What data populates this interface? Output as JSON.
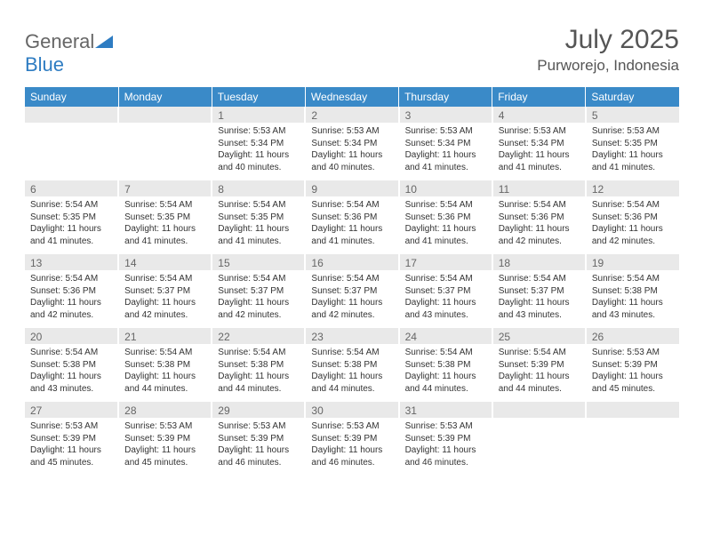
{
  "brand": {
    "part1": "General",
    "part2": "Blue"
  },
  "title": "July 2025",
  "location": "Purworejo, Indonesia",
  "colors": {
    "header_bg": "#3a8ac8",
    "header_text": "#ffffff",
    "daynum_bg": "#e9e9e9",
    "daynum_text": "#666666",
    "body_text": "#333333",
    "brand_gray": "#666666",
    "brand_blue": "#2e7cc2",
    "page_bg": "#ffffff"
  },
  "typography": {
    "title_fontsize": 30,
    "location_fontsize": 17,
    "weekday_fontsize": 12,
    "daynum_fontsize": 12,
    "cell_fontsize": 10
  },
  "weekdays": [
    "Sunday",
    "Monday",
    "Tuesday",
    "Wednesday",
    "Thursday",
    "Friday",
    "Saturday"
  ],
  "weeks": [
    [
      null,
      null,
      {
        "n": "1",
        "sr": "5:53 AM",
        "ss": "5:34 PM",
        "dl": "11 hours and 40 minutes."
      },
      {
        "n": "2",
        "sr": "5:53 AM",
        "ss": "5:34 PM",
        "dl": "11 hours and 40 minutes."
      },
      {
        "n": "3",
        "sr": "5:53 AM",
        "ss": "5:34 PM",
        "dl": "11 hours and 41 minutes."
      },
      {
        "n": "4",
        "sr": "5:53 AM",
        "ss": "5:34 PM",
        "dl": "11 hours and 41 minutes."
      },
      {
        "n": "5",
        "sr": "5:53 AM",
        "ss": "5:35 PM",
        "dl": "11 hours and 41 minutes."
      }
    ],
    [
      {
        "n": "6",
        "sr": "5:54 AM",
        "ss": "5:35 PM",
        "dl": "11 hours and 41 minutes."
      },
      {
        "n": "7",
        "sr": "5:54 AM",
        "ss": "5:35 PM",
        "dl": "11 hours and 41 minutes."
      },
      {
        "n": "8",
        "sr": "5:54 AM",
        "ss": "5:35 PM",
        "dl": "11 hours and 41 minutes."
      },
      {
        "n": "9",
        "sr": "5:54 AM",
        "ss": "5:36 PM",
        "dl": "11 hours and 41 minutes."
      },
      {
        "n": "10",
        "sr": "5:54 AM",
        "ss": "5:36 PM",
        "dl": "11 hours and 41 minutes."
      },
      {
        "n": "11",
        "sr": "5:54 AM",
        "ss": "5:36 PM",
        "dl": "11 hours and 42 minutes."
      },
      {
        "n": "12",
        "sr": "5:54 AM",
        "ss": "5:36 PM",
        "dl": "11 hours and 42 minutes."
      }
    ],
    [
      {
        "n": "13",
        "sr": "5:54 AM",
        "ss": "5:36 PM",
        "dl": "11 hours and 42 minutes."
      },
      {
        "n": "14",
        "sr": "5:54 AM",
        "ss": "5:37 PM",
        "dl": "11 hours and 42 minutes."
      },
      {
        "n": "15",
        "sr": "5:54 AM",
        "ss": "5:37 PM",
        "dl": "11 hours and 42 minutes."
      },
      {
        "n": "16",
        "sr": "5:54 AM",
        "ss": "5:37 PM",
        "dl": "11 hours and 42 minutes."
      },
      {
        "n": "17",
        "sr": "5:54 AM",
        "ss": "5:37 PM",
        "dl": "11 hours and 43 minutes."
      },
      {
        "n": "18",
        "sr": "5:54 AM",
        "ss": "5:37 PM",
        "dl": "11 hours and 43 minutes."
      },
      {
        "n": "19",
        "sr": "5:54 AM",
        "ss": "5:38 PM",
        "dl": "11 hours and 43 minutes."
      }
    ],
    [
      {
        "n": "20",
        "sr": "5:54 AM",
        "ss": "5:38 PM",
        "dl": "11 hours and 43 minutes."
      },
      {
        "n": "21",
        "sr": "5:54 AM",
        "ss": "5:38 PM",
        "dl": "11 hours and 44 minutes."
      },
      {
        "n": "22",
        "sr": "5:54 AM",
        "ss": "5:38 PM",
        "dl": "11 hours and 44 minutes."
      },
      {
        "n": "23",
        "sr": "5:54 AM",
        "ss": "5:38 PM",
        "dl": "11 hours and 44 minutes."
      },
      {
        "n": "24",
        "sr": "5:54 AM",
        "ss": "5:38 PM",
        "dl": "11 hours and 44 minutes."
      },
      {
        "n": "25",
        "sr": "5:54 AM",
        "ss": "5:39 PM",
        "dl": "11 hours and 44 minutes."
      },
      {
        "n": "26",
        "sr": "5:53 AM",
        "ss": "5:39 PM",
        "dl": "11 hours and 45 minutes."
      }
    ],
    [
      {
        "n": "27",
        "sr": "5:53 AM",
        "ss": "5:39 PM",
        "dl": "11 hours and 45 minutes."
      },
      {
        "n": "28",
        "sr": "5:53 AM",
        "ss": "5:39 PM",
        "dl": "11 hours and 45 minutes."
      },
      {
        "n": "29",
        "sr": "5:53 AM",
        "ss": "5:39 PM",
        "dl": "11 hours and 46 minutes."
      },
      {
        "n": "30",
        "sr": "5:53 AM",
        "ss": "5:39 PM",
        "dl": "11 hours and 46 minutes."
      },
      {
        "n": "31",
        "sr": "5:53 AM",
        "ss": "5:39 PM",
        "dl": "11 hours and 46 minutes."
      },
      null,
      null
    ]
  ],
  "labels": {
    "sunrise": "Sunrise:",
    "sunset": "Sunset:",
    "daylight": "Daylight:"
  }
}
